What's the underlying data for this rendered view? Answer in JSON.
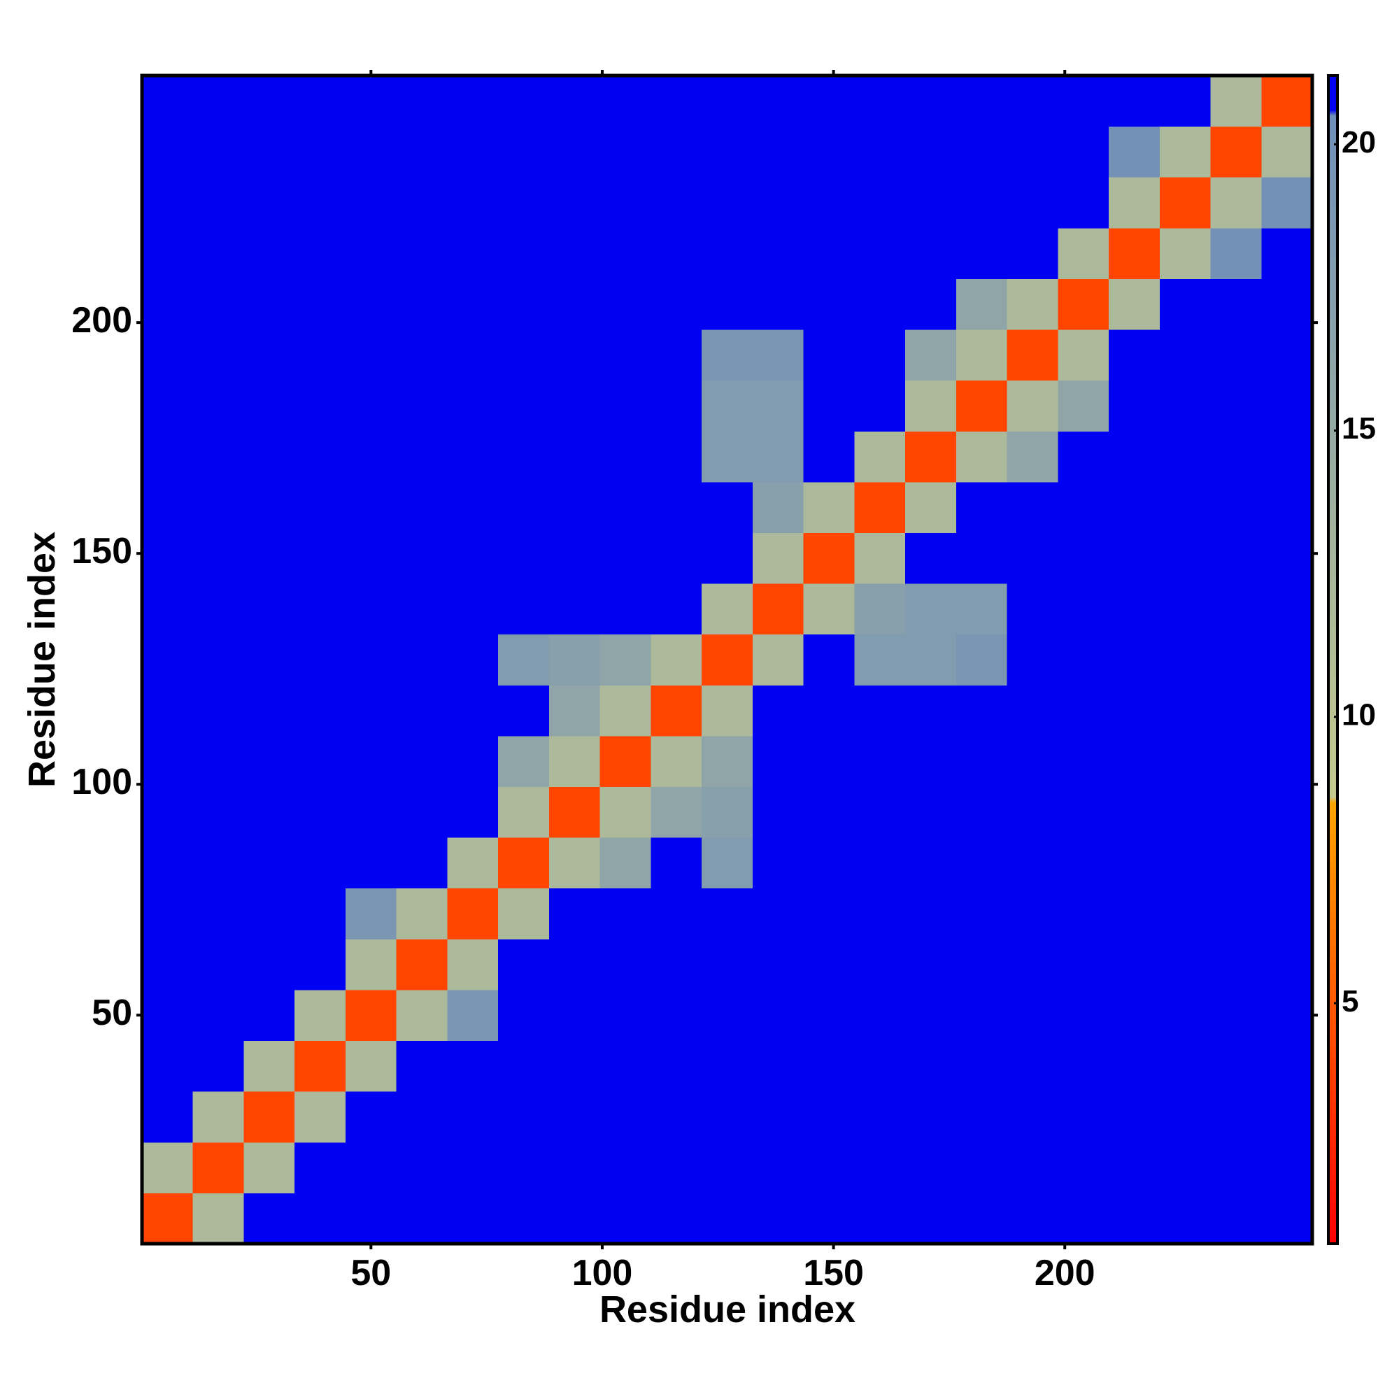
{
  "chart_data": {
    "type": "heatmap",
    "xlabel": "Residue index",
    "ylabel": "Residue index",
    "xlim": [
      0.5,
      253.5
    ],
    "ylim": [
      0.5,
      253.5
    ],
    "xticks": [
      50,
      100,
      150,
      200
    ],
    "yticks": [
      50,
      100,
      150,
      200
    ],
    "xbins": [
      0.5,
      11.5,
      22.5,
      33.5,
      44.5,
      55.5,
      66.5,
      77.5,
      88.5,
      99.5,
      110.5,
      121.5,
      132.5,
      143.5,
      154.5,
      165.5,
      176.5,
      187.5,
      198.5,
      209.5,
      220.5,
      231.5,
      242.5,
      253.5
    ],
    "ybins": [
      0.5,
      11.5,
      22.5,
      33.5,
      44.5,
      55.5,
      66.5,
      77.5,
      88.5,
      99.5,
      110.5,
      121.5,
      132.5,
      143.5,
      154.5,
      165.5,
      176.5,
      187.5,
      198.5,
      209.5,
      220.5,
      231.5,
      242.5,
      253.5
    ],
    "z": [
      [
        4,
        12,
        21,
        21,
        21,
        21,
        21,
        21,
        21,
        21,
        21,
        21,
        21,
        21,
        21,
        21,
        21,
        21,
        21,
        21,
        21,
        21,
        21
      ],
      [
        12,
        4,
        12,
        21,
        21,
        21,
        21,
        21,
        21,
        21,
        21,
        21,
        21,
        21,
        21,
        21,
        21,
        21,
        21,
        21,
        21,
        21,
        21
      ],
      [
        21,
        12,
        4,
        12,
        21,
        21,
        21,
        21,
        21,
        21,
        21,
        21,
        21,
        21,
        21,
        21,
        21,
        21,
        21,
        21,
        21,
        21,
        21
      ],
      [
        21,
        21,
        12,
        4,
        12,
        21,
        21,
        21,
        21,
        21,
        21,
        21,
        21,
        21,
        21,
        21,
        21,
        21,
        21,
        21,
        21,
        21,
        21
      ],
      [
        21,
        21,
        21,
        12,
        4,
        12,
        19,
        21,
        21,
        21,
        21,
        21,
        21,
        21,
        21,
        21,
        21,
        21,
        21,
        21,
        21,
        21,
        21
      ],
      [
        21,
        21,
        21,
        21,
        12,
        4,
        12,
        21,
        21,
        21,
        21,
        21,
        21,
        21,
        21,
        21,
        21,
        21,
        21,
        21,
        21,
        21,
        21
      ],
      [
        21,
        21,
        21,
        21,
        19,
        12,
        4,
        12,
        21,
        21,
        21,
        21,
        21,
        21,
        21,
        21,
        21,
        21,
        21,
        21,
        21,
        21,
        21
      ],
      [
        21,
        21,
        21,
        21,
        21,
        21,
        12,
        4,
        12,
        16,
        21,
        18,
        21,
        21,
        21,
        21,
        21,
        21,
        21,
        21,
        21,
        21,
        21
      ],
      [
        21,
        21,
        21,
        21,
        21,
        21,
        21,
        12,
        4,
        12,
        16,
        17,
        21,
        21,
        21,
        21,
        21,
        21,
        21,
        21,
        21,
        21,
        21
      ],
      [
        21,
        21,
        21,
        21,
        21,
        21,
        21,
        16,
        12,
        4,
        12,
        16,
        21,
        21,
        21,
        21,
        21,
        21,
        21,
        21,
        21,
        21,
        21
      ],
      [
        21,
        21,
        21,
        21,
        21,
        21,
        21,
        21,
        16,
        12,
        4,
        12,
        21,
        21,
        21,
        21,
        21,
        21,
        21,
        21,
        21,
        21,
        21
      ],
      [
        21,
        21,
        21,
        21,
        21,
        21,
        21,
        18,
        17,
        16,
        12,
        4,
        12,
        21,
        18,
        18,
        19,
        21,
        21,
        21,
        21,
        21,
        21
      ],
      [
        21,
        21,
        21,
        21,
        21,
        21,
        21,
        21,
        21,
        21,
        21,
        12,
        4,
        12,
        17,
        18,
        18,
        21,
        21,
        21,
        21,
        21,
        21
      ],
      [
        21,
        21,
        21,
        21,
        21,
        21,
        21,
        21,
        21,
        21,
        21,
        21,
        12,
        4,
        12,
        21,
        21,
        21,
        21,
        21,
        21,
        21,
        21
      ],
      [
        21,
        21,
        21,
        21,
        21,
        21,
        21,
        21,
        21,
        21,
        21,
        21,
        17,
        12,
        4,
        12,
        21,
        21,
        21,
        21,
        21,
        21,
        21
      ],
      [
        21,
        21,
        21,
        21,
        21,
        21,
        21,
        21,
        21,
        21,
        21,
        18,
        18,
        21,
        12,
        4,
        12,
        16,
        21,
        21,
        21,
        21,
        21
      ],
      [
        21,
        21,
        21,
        21,
        21,
        21,
        21,
        21,
        21,
        21,
        21,
        18,
        18,
        21,
        21,
        12,
        4,
        12,
        16,
        21,
        21,
        21,
        21
      ],
      [
        21,
        21,
        21,
        21,
        21,
        21,
        21,
        21,
        21,
        21,
        21,
        19,
        19,
        21,
        21,
        16,
        12,
        4,
        12,
        21,
        21,
        21,
        21
      ],
      [
        21,
        21,
        21,
        21,
        21,
        21,
        21,
        21,
        21,
        21,
        21,
        21,
        21,
        21,
        21,
        21,
        16,
        12,
        4,
        12,
        21,
        21,
        21
      ],
      [
        21,
        21,
        21,
        21,
        21,
        21,
        21,
        21,
        21,
        21,
        21,
        21,
        21,
        21,
        21,
        21,
        21,
        21,
        12,
        4,
        12,
        20,
        21
      ],
      [
        21,
        21,
        21,
        21,
        21,
        21,
        21,
        21,
        21,
        21,
        21,
        21,
        21,
        21,
        21,
        21,
        21,
        21,
        21,
        12,
        4,
        12,
        20
      ],
      [
        21,
        21,
        21,
        21,
        21,
        21,
        21,
        21,
        21,
        21,
        21,
        21,
        21,
        21,
        21,
        21,
        21,
        21,
        21,
        20,
        12,
        4,
        12
      ],
      [
        21,
        21,
        21,
        21,
        21,
        21,
        21,
        21,
        21,
        21,
        21,
        21,
        21,
        21,
        21,
        21,
        21,
        21,
        21,
        21,
        21,
        12,
        4
      ]
    ],
    "zlim": [
      0.8,
      21.2
    ],
    "zticks": [
      5,
      10,
      15,
      20
    ],
    "colormap": [
      {
        "value": 0.8,
        "color": "#ff0000"
      },
      {
        "value": 5,
        "color": "#ff5a00"
      },
      {
        "value": 8.5,
        "color": "#ffa500"
      },
      {
        "value": 8.6,
        "color": "#c4ca8e"
      },
      {
        "value": 20.5,
        "color": "#6f8fb8"
      },
      {
        "value": 20.6,
        "color": "#0000f2"
      },
      {
        "value": 21.2,
        "color": "#0000f2"
      }
    ]
  }
}
